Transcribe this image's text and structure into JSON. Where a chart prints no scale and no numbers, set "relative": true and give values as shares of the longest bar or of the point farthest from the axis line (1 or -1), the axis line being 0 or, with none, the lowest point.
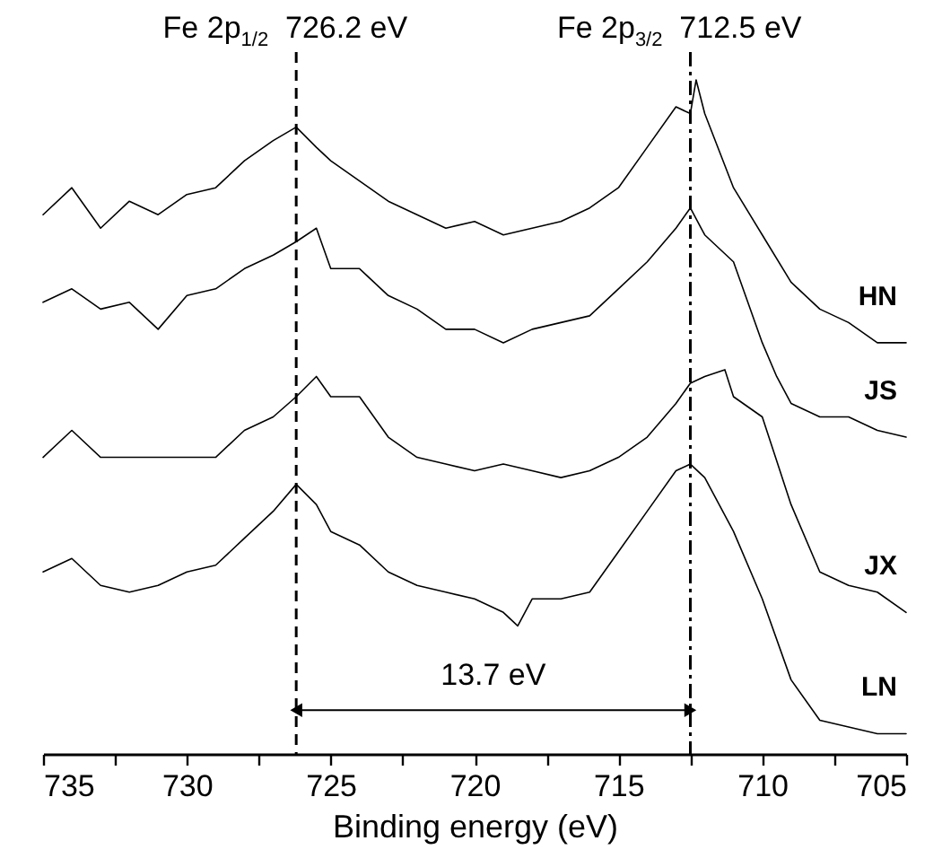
{
  "chart_data": {
    "type": "line",
    "relative": true,
    "xlabel": "Binding energy (eV)",
    "xlim": [
      735,
      705
    ],
    "xticks": [
      735,
      {
        "value": 732.5,
        "label": null
      },
      730,
      {
        "value": 727.5,
        "label": null
      },
      725,
      {
        "value": 722.5,
        "label": null
      },
      720,
      {
        "value": 717.5,
        "label": null
      },
      715,
      {
        "value": 712.5,
        "label": null
      },
      710,
      {
        "value": 707.5,
        "label": null
      },
      705
    ],
    "grid": false,
    "marker": "none",
    "line_style": "solid",
    "series": [
      {
        "name": "HN",
        "color": "#000000",
        "x": [
          735,
          734,
          733,
          732,
          731,
          730,
          729,
          728,
          727,
          726.2,
          725.5,
          725,
          724,
          723,
          722,
          721,
          720,
          719,
          718,
          717,
          716,
          715,
          714,
          713,
          712.5,
          712.3,
          712,
          711,
          710,
          709,
          708,
          707,
          706,
          705
        ],
        "values": [
          0.8,
          0.84,
          0.78,
          0.82,
          0.8,
          0.83,
          0.84,
          0.88,
          0.91,
          0.93,
          0.9,
          0.88,
          0.85,
          0.82,
          0.8,
          0.78,
          0.79,
          0.77,
          0.78,
          0.79,
          0.81,
          0.84,
          0.9,
          0.96,
          0.95,
          1.0,
          0.95,
          0.84,
          0.77,
          0.7,
          0.66,
          0.64,
          0.61,
          0.61
        ]
      },
      {
        "name": "JS",
        "color": "#000000",
        "x": [
          735,
          734,
          733,
          732,
          731,
          730,
          729,
          728,
          727,
          726.2,
          725.5,
          725,
          724,
          723,
          722,
          721,
          720,
          719,
          718,
          717,
          716,
          715,
          714,
          713,
          712.5,
          712,
          711,
          710,
          709.5,
          709,
          708,
          707,
          706,
          705
        ],
        "values": [
          0.67,
          0.69,
          0.66,
          0.67,
          0.63,
          0.68,
          0.69,
          0.72,
          0.74,
          0.76,
          0.78,
          0.72,
          0.72,
          0.68,
          0.66,
          0.63,
          0.63,
          0.61,
          0.63,
          0.64,
          0.65,
          0.69,
          0.73,
          0.78,
          0.81,
          0.77,
          0.73,
          0.61,
          0.56,
          0.52,
          0.5,
          0.5,
          0.48,
          0.47
        ]
      },
      {
        "name": "JX",
        "color": "#000000",
        "x": [
          735,
          734,
          733,
          732,
          731,
          730,
          729,
          728,
          727,
          726.2,
          725.5,
          725,
          724,
          723,
          722,
          721,
          720,
          719,
          718,
          717,
          716,
          715,
          714,
          713,
          712.5,
          712,
          711.3,
          711,
          710,
          709,
          708,
          707,
          706,
          705
        ],
        "values": [
          0.44,
          0.48,
          0.44,
          0.44,
          0.44,
          0.44,
          0.44,
          0.48,
          0.5,
          0.53,
          0.56,
          0.53,
          0.53,
          0.47,
          0.44,
          0.43,
          0.42,
          0.43,
          0.42,
          0.41,
          0.42,
          0.44,
          0.47,
          0.52,
          0.55,
          0.56,
          0.57,
          0.53,
          0.5,
          0.37,
          0.27,
          0.25,
          0.24,
          0.21
        ]
      },
      {
        "name": "LN",
        "color": "#000000",
        "x": [
          735,
          734,
          733,
          732,
          731,
          730,
          729,
          728,
          727,
          726.2,
          725.5,
          725,
          724,
          723,
          722,
          721,
          720,
          719,
          718.5,
          718,
          717,
          716,
          715,
          714,
          713,
          712.5,
          712,
          711,
          710,
          709,
          708,
          707,
          706,
          705
        ],
        "values": [
          0.27,
          0.29,
          0.25,
          0.24,
          0.25,
          0.27,
          0.28,
          0.32,
          0.36,
          0.4,
          0.37,
          0.33,
          0.31,
          0.27,
          0.25,
          0.24,
          0.23,
          0.21,
          0.19,
          0.23,
          0.23,
          0.24,
          0.3,
          0.36,
          0.42,
          0.43,
          0.41,
          0.33,
          0.23,
          0.11,
          0.05,
          0.04,
          0.03,
          0.03
        ]
      }
    ],
    "ref_lines": [
      {
        "axis": "x",
        "value": 726.2,
        "label": "Fe 2p$_{1/2}$  726.2 eV",
        "line_style": "dashed",
        "color": "#000000"
      },
      {
        "axis": "x",
        "value": 712.5,
        "label": "Fe 2p$_{3/2}$  712.5 eV",
        "line_style": "dashdot",
        "color": "#000000"
      }
    ],
    "annotations": [
      "13.7 eV"
    ]
  }
}
